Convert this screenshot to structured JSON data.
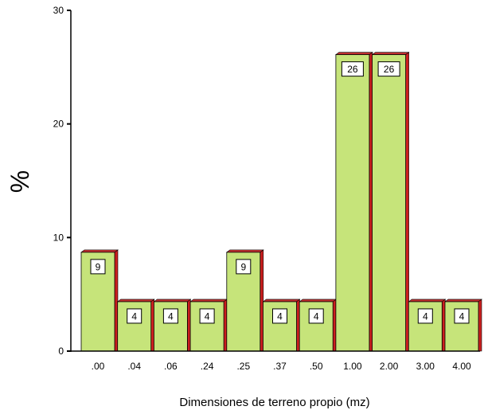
{
  "chart_data": {
    "type": "bar",
    "title": "",
    "xlabel": "Dimensiones de terreno propio (mz)",
    "ylabel": "%",
    "ylim": [
      0,
      30
    ],
    "yticks": [
      0,
      10,
      20,
      30
    ],
    "categories": [
      ".00",
      ".04",
      ".06",
      ".24",
      ".25",
      ".37",
      ".50",
      "1.00",
      "2.00",
      "3.00",
      "4.00"
    ],
    "values": [
      8.7,
      4.35,
      4.35,
      4.35,
      8.7,
      4.35,
      4.35,
      26.1,
      26.1,
      4.35,
      4.35
    ],
    "data_labels": [
      "9",
      "4",
      "4",
      "4",
      "9",
      "4",
      "4",
      "26",
      "26",
      "4",
      "4"
    ],
    "grid": false,
    "colors": {
      "bar_face": "#c6e47a",
      "bar_side": "#cc1f1f",
      "bar_top": "#c03030",
      "axis": "#000000",
      "label_box": "#ffffff"
    }
  }
}
